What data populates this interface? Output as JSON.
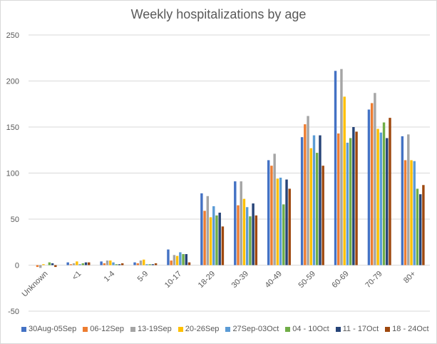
{
  "chart_data": {
    "type": "bar",
    "title": "Weekly hospitalizations by age",
    "categories": [
      "Unknown",
      "<1",
      "1-4",
      "5-9",
      "10-17",
      "18-29",
      "30-39",
      "40-49",
      "50-59",
      "60-69",
      "70-79",
      "80+"
    ],
    "ylim": [
      -50,
      250
    ],
    "yticks": [
      -50,
      0,
      50,
      100,
      150,
      200,
      250
    ],
    "grid": true,
    "legend_position": "bottom",
    "series": [
      {
        "name": "30Aug-05Sep",
        "color": "#4472c4",
        "values": [
          0,
          3,
          4,
          3,
          17,
          78,
          91,
          114,
          139,
          211,
          169,
          140
        ]
      },
      {
        "name": "06-12Sep",
        "color": "#ed7d31",
        "values": [
          -2,
          1,
          2,
          2,
          5,
          59,
          65,
          108,
          153,
          143,
          176,
          114
        ]
      },
      {
        "name": "13-19Sep",
        "color": "#a5a5a5",
        "values": [
          -3,
          2,
          5,
          5,
          11,
          75,
          91,
          121,
          162,
          213,
          187,
          142
        ]
      },
      {
        "name": "20-26Sep",
        "color": "#ffc000",
        "values": [
          1,
          4,
          5,
          6,
          10,
          52,
          72,
          94,
          127,
          183,
          148,
          114
        ]
      },
      {
        "name": "27Sep-03Oct",
        "color": "#5b9bd5",
        "values": [
          0,
          1,
          3,
          1,
          14,
          64,
          63,
          95,
          141,
          133,
          144,
          113
        ]
      },
      {
        "name": "04 - 10Oct",
        "color": "#70ad47",
        "values": [
          3,
          2,
          1,
          1,
          12,
          54,
          53,
          66,
          122,
          138,
          155,
          83
        ]
      },
      {
        "name": "11 - 17Oct",
        "color": "#264478",
        "values": [
          2,
          3,
          1,
          1,
          12,
          57,
          67,
          93,
          141,
          150,
          138,
          77
        ]
      },
      {
        "name": "18 - 24Oct",
        "color": "#9e480e",
        "values": [
          -2,
          3,
          2,
          2,
          3,
          42,
          54,
          83,
          108,
          145,
          160,
          87
        ]
      }
    ]
  }
}
